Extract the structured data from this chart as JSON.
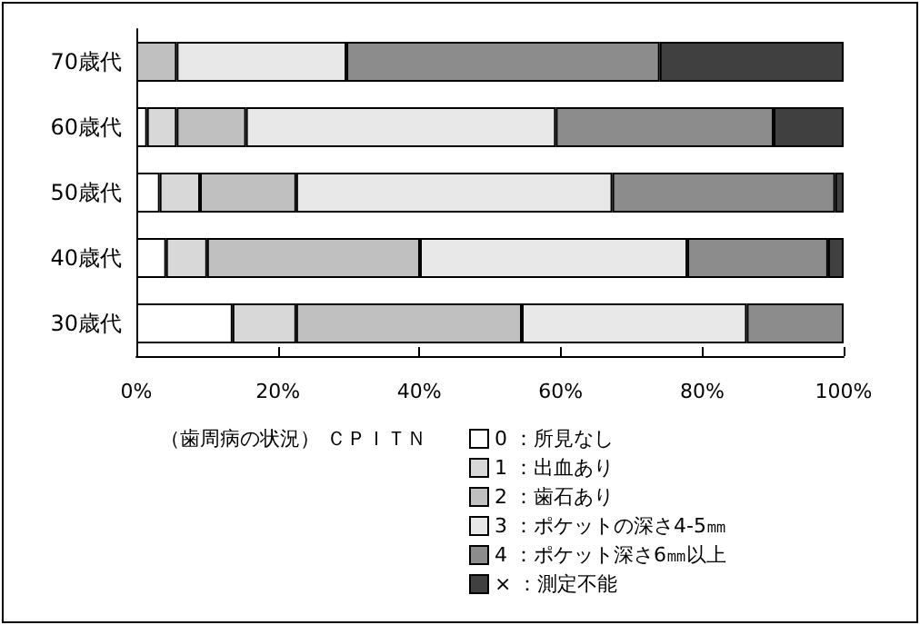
{
  "chart_data": {
    "type": "bar",
    "orientation": "horizontal",
    "stacked": true,
    "categories": [
      "70歳代",
      "60歳代",
      "50歳代",
      "40歳代",
      "30歳代"
    ],
    "series": [
      {
        "name": "0 ：所見なし",
        "color": "#ffffff",
        "values": [
          0,
          1.5,
          3.3,
          4.2,
          13.6
        ]
      },
      {
        "name": "1 ：出血あり",
        "color": "#d8d8d8",
        "values": [
          0,
          4.2,
          5.7,
          5.8,
          9.0
        ]
      },
      {
        "name": "2 ：歯石あり",
        "color": "#c0c0c0",
        "values": [
          5.7,
          9.8,
          13.6,
          30.1,
          31.9
        ]
      },
      {
        "name": "3 ：ポケットの深さ4-5㎜",
        "color": "#e8e8e8",
        "values": [
          24.0,
          43.8,
          44.7,
          37.8,
          31.8
        ]
      },
      {
        "name": "4 ：ポケット深さ6㎜以上",
        "color": "#8c8c8c",
        "values": [
          44.3,
          30.8,
          31.5,
          19.9,
          13.7
        ]
      },
      {
        "name": "× ：測定不能",
        "color": "#404040",
        "values": [
          26.0,
          9.9,
          1.2,
          2.2,
          0
        ]
      }
    ],
    "xlim": [
      0,
      100
    ],
    "xticks": [
      {
        "value": 0,
        "label": "0%"
      },
      {
        "value": 20,
        "label": "20%"
      },
      {
        "value": 40,
        "label": "40%"
      },
      {
        "value": 60,
        "label": "60%"
      },
      {
        "value": 80,
        "label": "80%"
      },
      {
        "value": 100,
        "label": "100%"
      }
    ],
    "legend": "bottom",
    "legend_title": "（歯周病の状況）  ＣＰＩＴＮ",
    "grid": false
  }
}
